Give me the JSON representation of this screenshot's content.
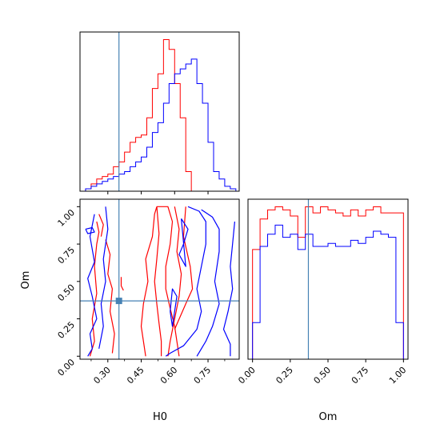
{
  "colors": {
    "series_red": "#ff0000",
    "series_blue": "#0000ff",
    "truth": "#4682b4",
    "axes": "#000000"
  },
  "chart_data": [
    {
      "panel": "H0 marginal",
      "type": "histogram",
      "x_range": [
        0.175,
        0.89
      ],
      "y_ticks_shown": false,
      "truth_x": 0.35,
      "bin_edges": [
        0.2,
        0.225,
        0.25,
        0.275,
        0.3,
        0.325,
        0.35,
        0.375,
        0.4,
        0.425,
        0.45,
        0.475,
        0.5,
        0.525,
        0.55,
        0.575,
        0.6,
        0.625,
        0.65,
        0.675,
        0.7,
        0.725,
        0.75,
        0.775,
        0.8,
        0.825,
        0.85,
        0.875
      ],
      "series": [
        {
          "color": "red",
          "counts": [
            1,
            3,
            5,
            6,
            7,
            10,
            12,
            16,
            20,
            22,
            23,
            30,
            42,
            48,
            62,
            58,
            44,
            30,
            8,
            0,
            0,
            0,
            0,
            0,
            0,
            0,
            0
          ]
        },
        {
          "color": "blue",
          "counts": [
            1,
            2,
            3,
            4,
            5,
            6,
            7,
            8,
            10,
            12,
            14,
            18,
            24,
            28,
            36,
            44,
            48,
            50,
            52,
            54,
            44,
            36,
            20,
            8,
            5,
            2,
            1
          ]
        }
      ]
    },
    {
      "panel": "H0 vs Om joint",
      "type": "contour",
      "xlabel": "H0",
      "ylabel": "Om",
      "x_ticks": [
        "0.30",
        "0.45",
        "0.60",
        "0.75"
      ],
      "y_ticks": [
        "0.00",
        "0.25",
        "0.50",
        "0.75",
        "1.00"
      ],
      "x_range": [
        0.175,
        0.89
      ],
      "y_range": [
        -0.02,
        1.05
      ],
      "truth": {
        "x": 0.35,
        "y": 0.37
      },
      "series": [
        {
          "color": "red",
          "contours": [
            [
              [
                0.52,
                1.0
              ],
              [
                0.57,
                1.0
              ],
              [
                0.59,
                0.9
              ],
              [
                0.58,
                0.75
              ],
              [
                0.56,
                0.6
              ],
              [
                0.56,
                0.45
              ],
              [
                0.58,
                0.32
              ],
              [
                0.6,
                0.2
              ],
              [
                0.61,
                0.1
              ],
              [
                0.62,
                0.0
              ]
            ],
            [
              [
                0.54,
                0.0
              ],
              [
                0.54,
                0.1
              ],
              [
                0.53,
                0.22
              ],
              [
                0.52,
                0.35
              ],
              [
                0.51,
                0.5
              ],
              [
                0.52,
                0.65
              ],
              [
                0.53,
                0.82
              ],
              [
                0.52,
                1.0
              ]
            ],
            [
              [
                0.6,
                1.0
              ],
              [
                0.62,
                0.85
              ],
              [
                0.61,
                0.7
              ],
              [
                0.63,
                0.55
              ],
              [
                0.62,
                0.4
              ],
              [
                0.6,
                0.25
              ],
              [
                0.58,
                0.1
              ],
              [
                0.57,
                0.0
              ]
            ],
            [
              [
                0.47,
                0.0
              ],
              [
                0.46,
                0.1
              ],
              [
                0.45,
                0.2
              ],
              [
                0.46,
                0.35
              ],
              [
                0.48,
                0.5
              ],
              [
                0.47,
                0.65
              ],
              [
                0.5,
                0.8
              ],
              [
                0.51,
                0.95
              ],
              [
                0.52,
                1.0
              ]
            ],
            [
              [
                0.65,
                1.0
              ],
              [
                0.64,
                0.8
              ],
              [
                0.67,
                0.6
              ],
              [
                0.68,
                0.45
              ],
              [
                0.65,
                0.35
              ],
              [
                0.6,
                0.18
              ]
            ],
            [
              [
                0.22,
                0.0
              ],
              [
                0.24,
                0.1
              ],
              [
                0.23,
                0.25
              ],
              [
                0.25,
                0.42
              ],
              [
                0.24,
                0.6
              ],
              [
                0.25,
                0.75
              ],
              [
                0.26,
                0.83
              ],
              [
                0.25,
                0.9
              ]
            ],
            [
              [
                0.29,
                0.78
              ],
              [
                0.31,
                0.68
              ],
              [
                0.3,
                0.55
              ],
              [
                0.32,
                0.45
              ],
              [
                0.31,
                0.3
              ],
              [
                0.33,
                0.15
              ],
              [
                0.32,
                0.02
              ]
            ],
            [
              [
                0.26,
                0.95
              ],
              [
                0.28,
                0.88
              ],
              [
                0.27,
                0.8
              ]
            ],
            [
              [
                0.36,
                0.53
              ],
              [
                0.36,
                0.47
              ],
              [
                0.37,
                0.44
              ]
            ]
          ]
        },
        {
          "color": "blue",
          "contours": [
            [
              [
                0.66,
                1.0
              ],
              [
                0.71,
                0.97
              ],
              [
                0.74,
                0.9
              ],
              [
                0.74,
                0.75
              ],
              [
                0.72,
                0.6
              ],
              [
                0.7,
                0.45
              ],
              [
                0.72,
                0.3
              ],
              [
                0.7,
                0.18
              ],
              [
                0.64,
                0.07
              ],
              [
                0.58,
                0.02
              ],
              [
                0.56,
                0.0
              ]
            ],
            [
              [
                0.7,
                0.0
              ],
              [
                0.74,
                0.1
              ],
              [
                0.77,
                0.2
              ],
              [
                0.8,
                0.35
              ],
              [
                0.78,
                0.5
              ],
              [
                0.8,
                0.7
              ],
              [
                0.8,
                0.85
              ],
              [
                0.77,
                0.93
              ],
              [
                0.72,
                0.98
              ]
            ],
            [
              [
                0.87,
                0.9
              ],
              [
                0.86,
                0.75
              ],
              [
                0.85,
                0.6
              ],
              [
                0.86,
                0.45
              ],
              [
                0.84,
                0.3
              ],
              [
                0.82,
                0.18
              ],
              [
                0.85,
                0.08
              ],
              [
                0.85,
                0.0
              ]
            ],
            [
              [
                0.58,
                0.3
              ],
              [
                0.59,
                0.2
              ],
              [
                0.6,
                0.3
              ],
              [
                0.61,
                0.4
              ],
              [
                0.59,
                0.45
              ],
              [
                0.58,
                0.3
              ]
            ],
            [
              [
                0.63,
                0.92
              ],
              [
                0.66,
                0.85
              ],
              [
                0.64,
                0.75
              ],
              [
                0.62,
                0.68
              ],
              [
                0.65,
                0.6
              ],
              [
                0.63,
                0.92
              ]
            ],
            [
              [
                0.21,
                0.0
              ],
              [
                0.23,
                0.05
              ],
              [
                0.22,
                0.15
              ],
              [
                0.25,
                0.25
              ],
              [
                0.23,
                0.4
              ],
              [
                0.21,
                0.52
              ],
              [
                0.24,
                0.63
              ],
              [
                0.22,
                0.8
              ],
              [
                0.24,
                0.95
              ]
            ],
            [
              [
                0.26,
                0.05
              ],
              [
                0.28,
                0.2
              ],
              [
                0.27,
                0.35
              ],
              [
                0.29,
                0.5
              ],
              [
                0.28,
                0.65
              ],
              [
                0.3,
                0.85
              ],
              [
                0.29,
                1.0
              ]
            ],
            [
              [
                0.2,
                0.85
              ],
              [
                0.23,
                0.86
              ],
              [
                0.24,
                0.83
              ],
              [
                0.21,
                0.82
              ],
              [
                0.2,
                0.85
              ]
            ]
          ]
        }
      ]
    },
    {
      "panel": "Om marginal",
      "type": "histogram",
      "xlabel": "Om",
      "x_ticks": [
        "0.00",
        "0.25",
        "0.50",
        "0.75",
        "1.00"
      ],
      "x_range": [
        -0.03,
        1.03
      ],
      "y_ticks_shown": false,
      "truth_x": 0.37,
      "bin_edges": [
        0.0,
        0.05,
        0.1,
        0.15,
        0.2,
        0.25,
        0.3,
        0.35,
        0.4,
        0.45,
        0.5,
        0.55,
        0.6,
        0.65,
        0.7,
        0.75,
        0.8,
        0.85,
        0.9,
        0.95,
        1.0
      ],
      "series": [
        {
          "color": "red",
          "counts": [
            36,
            46,
            49,
            50,
            49,
            47,
            40,
            50,
            48,
            50,
            49,
            48,
            47,
            49,
            47,
            49,
            50,
            48,
            48,
            48
          ]
        },
        {
          "color": "blue",
          "counts": [
            12,
            37,
            41,
            44,
            40,
            41,
            36,
            41,
            37,
            37,
            38,
            37,
            37,
            39,
            38,
            40,
            42,
            41,
            40,
            12
          ]
        }
      ]
    }
  ]
}
